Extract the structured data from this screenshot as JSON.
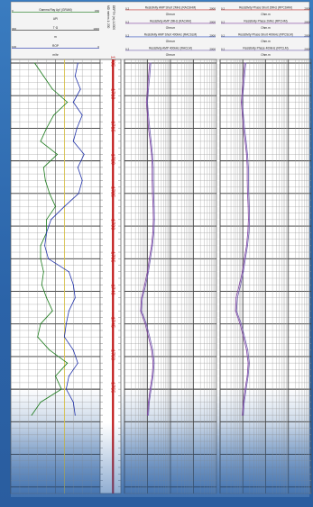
{
  "tracks": {
    "track1": {
      "curves": [
        {
          "name": "Gamma Ray Api' (GRAM)",
          "min": "0",
          "max": "150",
          "color": "#1a7a1a"
        },
        {
          "name": "API",
          "min": "",
          "max": "",
          "color": "#222222"
        },
        {
          "name": "T·Ω",
          "min": "300",
          "max": "1000",
          "color": "#222222"
        },
        {
          "name": "m",
          "min": "",
          "max": "",
          "color": "#222222"
        },
        {
          "name": "ROP",
          "min": "100",
          "max": "0",
          "color": "#2233aa"
        },
        {
          "name": "m/hr",
          "min": "",
          "max": "",
          "color": "#222222"
        }
      ]
    },
    "depth_track": {
      "label_a": "MD meters 1: 200",
      "label_b": "DEPTH (m) 1:2000"
    },
    "track3": {
      "curves": [
        {
          "name": "Resistivity AMP Short 2MHz (RACSHM)",
          "min": "0.2",
          "max": "2000",
          "color": "#c03030"
        },
        {
          "name": "Ohm.m",
          "min": "",
          "max": "",
          "color": "#222222"
        },
        {
          "name": "Resistivity AMP 2MHz (RACHM)",
          "min": "0.2",
          "max": "2000",
          "color": "#8040a0"
        },
        {
          "name": "Ohm.m",
          "min": "",
          "max": "",
          "color": "#222222"
        },
        {
          "name": "Resistivity AMP Short 400kHz (RACSLM)",
          "min": "0.2",
          "max": "2000",
          "color": "#3050c0"
        },
        {
          "name": "Ohm.m",
          "min": "",
          "max": "",
          "color": "#222222"
        },
        {
          "name": "Resistivity AMP 400kHz (RACLM)",
          "min": "0.2",
          "max": "2000",
          "color": "#7060b0"
        },
        {
          "name": "Ohm.m",
          "min": "",
          "max": "",
          "color": "#222222"
        }
      ]
    },
    "track4": {
      "curves": [
        {
          "name": "Resistivity Phase Short 2MHz (RPCSHM)",
          "min": "0.2",
          "max": "2000",
          "color": "#c03030"
        },
        {
          "name": "Ohm.m",
          "min": "",
          "max": "",
          "color": "#222222"
        },
        {
          "name": "Resistivity Phase 2MHz (RPCHM)",
          "min": "0.2",
          "max": "2000",
          "color": "#8040a0"
        },
        {
          "name": "Ohm.m",
          "min": "",
          "max": "",
          "color": "#222222"
        },
        {
          "name": "Resistivity Phase Short 400kHz (RPCSLM)",
          "min": "0.2",
          "max": "2000",
          "color": "#3050c0"
        },
        {
          "name": "Ohm.m",
          "min": "",
          "max": "",
          "color": "#222222"
        },
        {
          "name": "Resistivity Phase 400kHz (RPCLM)",
          "min": "0.2",
          "max": "2000",
          "color": "#7060b0"
        },
        {
          "name": "Ohm.m",
          "min": "",
          "max": "",
          "color": "#222222"
        }
      ]
    }
  },
  "chart_data": {
    "type": "line",
    "title": "",
    "ylabel": "MD meters 1: 200",
    "ylim": [
      1705,
      1771
    ],
    "y_reversed": true,
    "depth_ticks": [
      "1705",
      "1710",
      "1715",
      "1720",
      "1725",
      "1730",
      "1735",
      "1740",
      "1745",
      "1750",
      "1755"
    ],
    "depth_tick_values": [
      1705,
      1710,
      1715,
      1720,
      1725,
      1730,
      1735,
      1740,
      1745,
      1750,
      1755
    ],
    "grid": true,
    "series": [
      {
        "name": "Gamma Ray Api' (GRAM)",
        "track": "track1",
        "xlim": [
          0,
          150
        ],
        "depth": [
          1705,
          1707,
          1709,
          1711,
          1713,
          1715,
          1717,
          1719,
          1721,
          1723,
          1725,
          1727,
          1729,
          1731,
          1733,
          1735,
          1737,
          1739,
          1741,
          1743,
          1745,
          1747,
          1749,
          1751,
          1753,
          1755,
          1757,
          1759
        ],
        "values": [
          40,
          55,
          70,
          95,
          72,
          60,
          50,
          78,
          55,
          58,
          65,
          75,
          60,
          60,
          50,
          50,
          55,
          52,
          60,
          70,
          50,
          45,
          65,
          95,
          75,
          85,
          50,
          35
        ]
      },
      {
        "name": "ROP",
        "track": "track1",
        "xlim": [
          100,
          0
        ],
        "depth": [
          1705,
          1707,
          1709,
          1711,
          1713,
          1715,
          1717,
          1719,
          1721,
          1723,
          1725,
          1727,
          1729,
          1731,
          1733,
          1735,
          1737,
          1739,
          1741,
          1743,
          1745,
          1747,
          1749,
          1751,
          1753,
          1755,
          1757,
          1759
        ],
        "values": [
          25,
          28,
          22,
          30,
          20,
          26,
          30,
          18,
          25,
          20,
          24,
          40,
          55,
          60,
          62,
          58,
          35,
          30,
          28,
          35,
          38,
          40,
          30,
          25,
          35,
          38,
          30,
          28
        ]
      },
      {
        "name": "Resistivity AMP 2MHz (RACHM)",
        "track": "track3",
        "xlim": [
          0.2,
          2000
        ],
        "scale": "log",
        "depth": [
          1705,
          1707,
          1709,
          1711,
          1713,
          1715,
          1717,
          1719,
          1721,
          1723,
          1725,
          1727,
          1729,
          1731,
          1733,
          1735,
          1737,
          1739,
          1741,
          1743,
          1745,
          1747,
          1749,
          1751,
          1753,
          1755,
          1757,
          1759
        ],
        "values": [
          2.5,
          2.2,
          2.0,
          1.8,
          2.0,
          2.2,
          2.6,
          3.0,
          3.2,
          3.2,
          3.3,
          3.5,
          3.6,
          3.4,
          3.0,
          2.4,
          2.0,
          1.5,
          1.1,
          1.0,
          1.6,
          2.2,
          3.0,
          3.5,
          3.2,
          2.6,
          2.2,
          2.0
        ]
      },
      {
        "name": "Resistivity AMP 400kHz (RACLM)",
        "track": "track3",
        "xlim": [
          0.2,
          2000
        ],
        "scale": "log",
        "depth": [
          1705,
          1707,
          1709,
          1711,
          1713,
          1715,
          1717,
          1719,
          1721,
          1723,
          1725,
          1727,
          1729,
          1731,
          1733,
          1735,
          1737,
          1739,
          1741,
          1743,
          1745,
          1747,
          1749,
          1751,
          1753,
          1755,
          1757,
          1759
        ],
        "values": [
          2.8,
          2.5,
          2.2,
          2.0,
          2.2,
          2.5,
          2.9,
          3.3,
          3.6,
          3.6,
          3.7,
          3.9,
          4.0,
          3.8,
          3.3,
          2.7,
          2.2,
          1.7,
          1.2,
          1.1,
          1.8,
          2.5,
          3.4,
          3.9,
          3.5,
          2.9,
          2.4,
          2.2
        ]
      },
      {
        "name": "Resistivity Phase 2MHz (RPCHM)",
        "track": "track4",
        "xlim": [
          0.2,
          2000
        ],
        "scale": "log",
        "depth": [
          1705,
          1707,
          1709,
          1711,
          1713,
          1715,
          1717,
          1719,
          1721,
          1723,
          1725,
          1727,
          1729,
          1731,
          1733,
          1735,
          1737,
          1739,
          1741,
          1743,
          1745,
          1747,
          1749,
          1751,
          1753,
          1755,
          1757,
          1759
        ],
        "values": [
          2.4,
          2.1,
          1.9,
          1.7,
          1.9,
          2.1,
          2.5,
          2.9,
          3.1,
          3.1,
          3.2,
          3.4,
          3.5,
          3.3,
          2.9,
          2.3,
          1.9,
          1.4,
          1.0,
          0.95,
          1.5,
          2.1,
          2.9,
          3.4,
          3.1,
          2.5,
          2.1,
          1.9
        ]
      },
      {
        "name": "Resistivity Phase 400kHz (RPCLM)",
        "track": "track4",
        "xlim": [
          0.2,
          2000
        ],
        "scale": "log",
        "depth": [
          1705,
          1707,
          1709,
          1711,
          1713,
          1715,
          1717,
          1719,
          1721,
          1723,
          1725,
          1727,
          1729,
          1731,
          1733,
          1735,
          1737,
          1739,
          1741,
          1743,
          1745,
          1747,
          1749,
          1751,
          1753,
          1755,
          1757,
          1759
        ],
        "values": [
          2.7,
          2.4,
          2.1,
          1.9,
          2.1,
          2.4,
          2.8,
          3.2,
          3.5,
          3.5,
          3.6,
          3.8,
          3.9,
          3.7,
          3.2,
          2.6,
          2.1,
          1.6,
          1.15,
          1.05,
          1.7,
          2.4,
          3.3,
          3.8,
          3.4,
          2.8,
          2.3,
          2.1
        ]
      }
    ]
  }
}
